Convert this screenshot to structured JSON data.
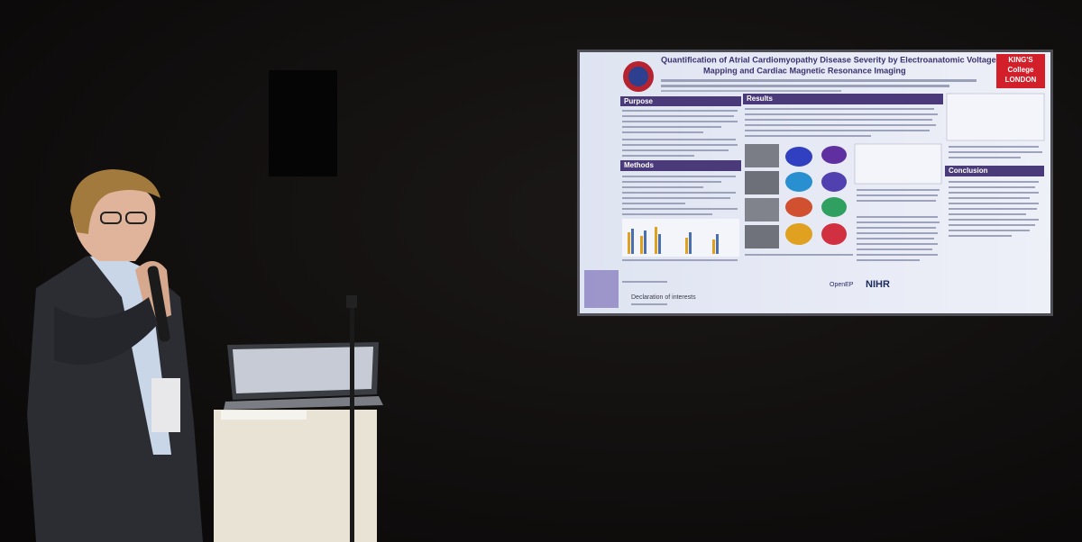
{
  "poster": {
    "title_lines": [
      "Quantification of Atrial Cardiomyopathy Disease Severity by Electroanatomic Voltage",
      "Mapping and Cardiac Magnetic Resonance Imaging"
    ],
    "logo_lines": [
      "KING'S",
      "College",
      "LONDON"
    ],
    "sections": {
      "purpose": "Purpose",
      "methods": "Methods",
      "results": "Results",
      "conclusion": "Conclusion"
    },
    "declaration": "Declaration of interests",
    "sponsors": [
      "OpenEP",
      "NIHR"
    ]
  }
}
